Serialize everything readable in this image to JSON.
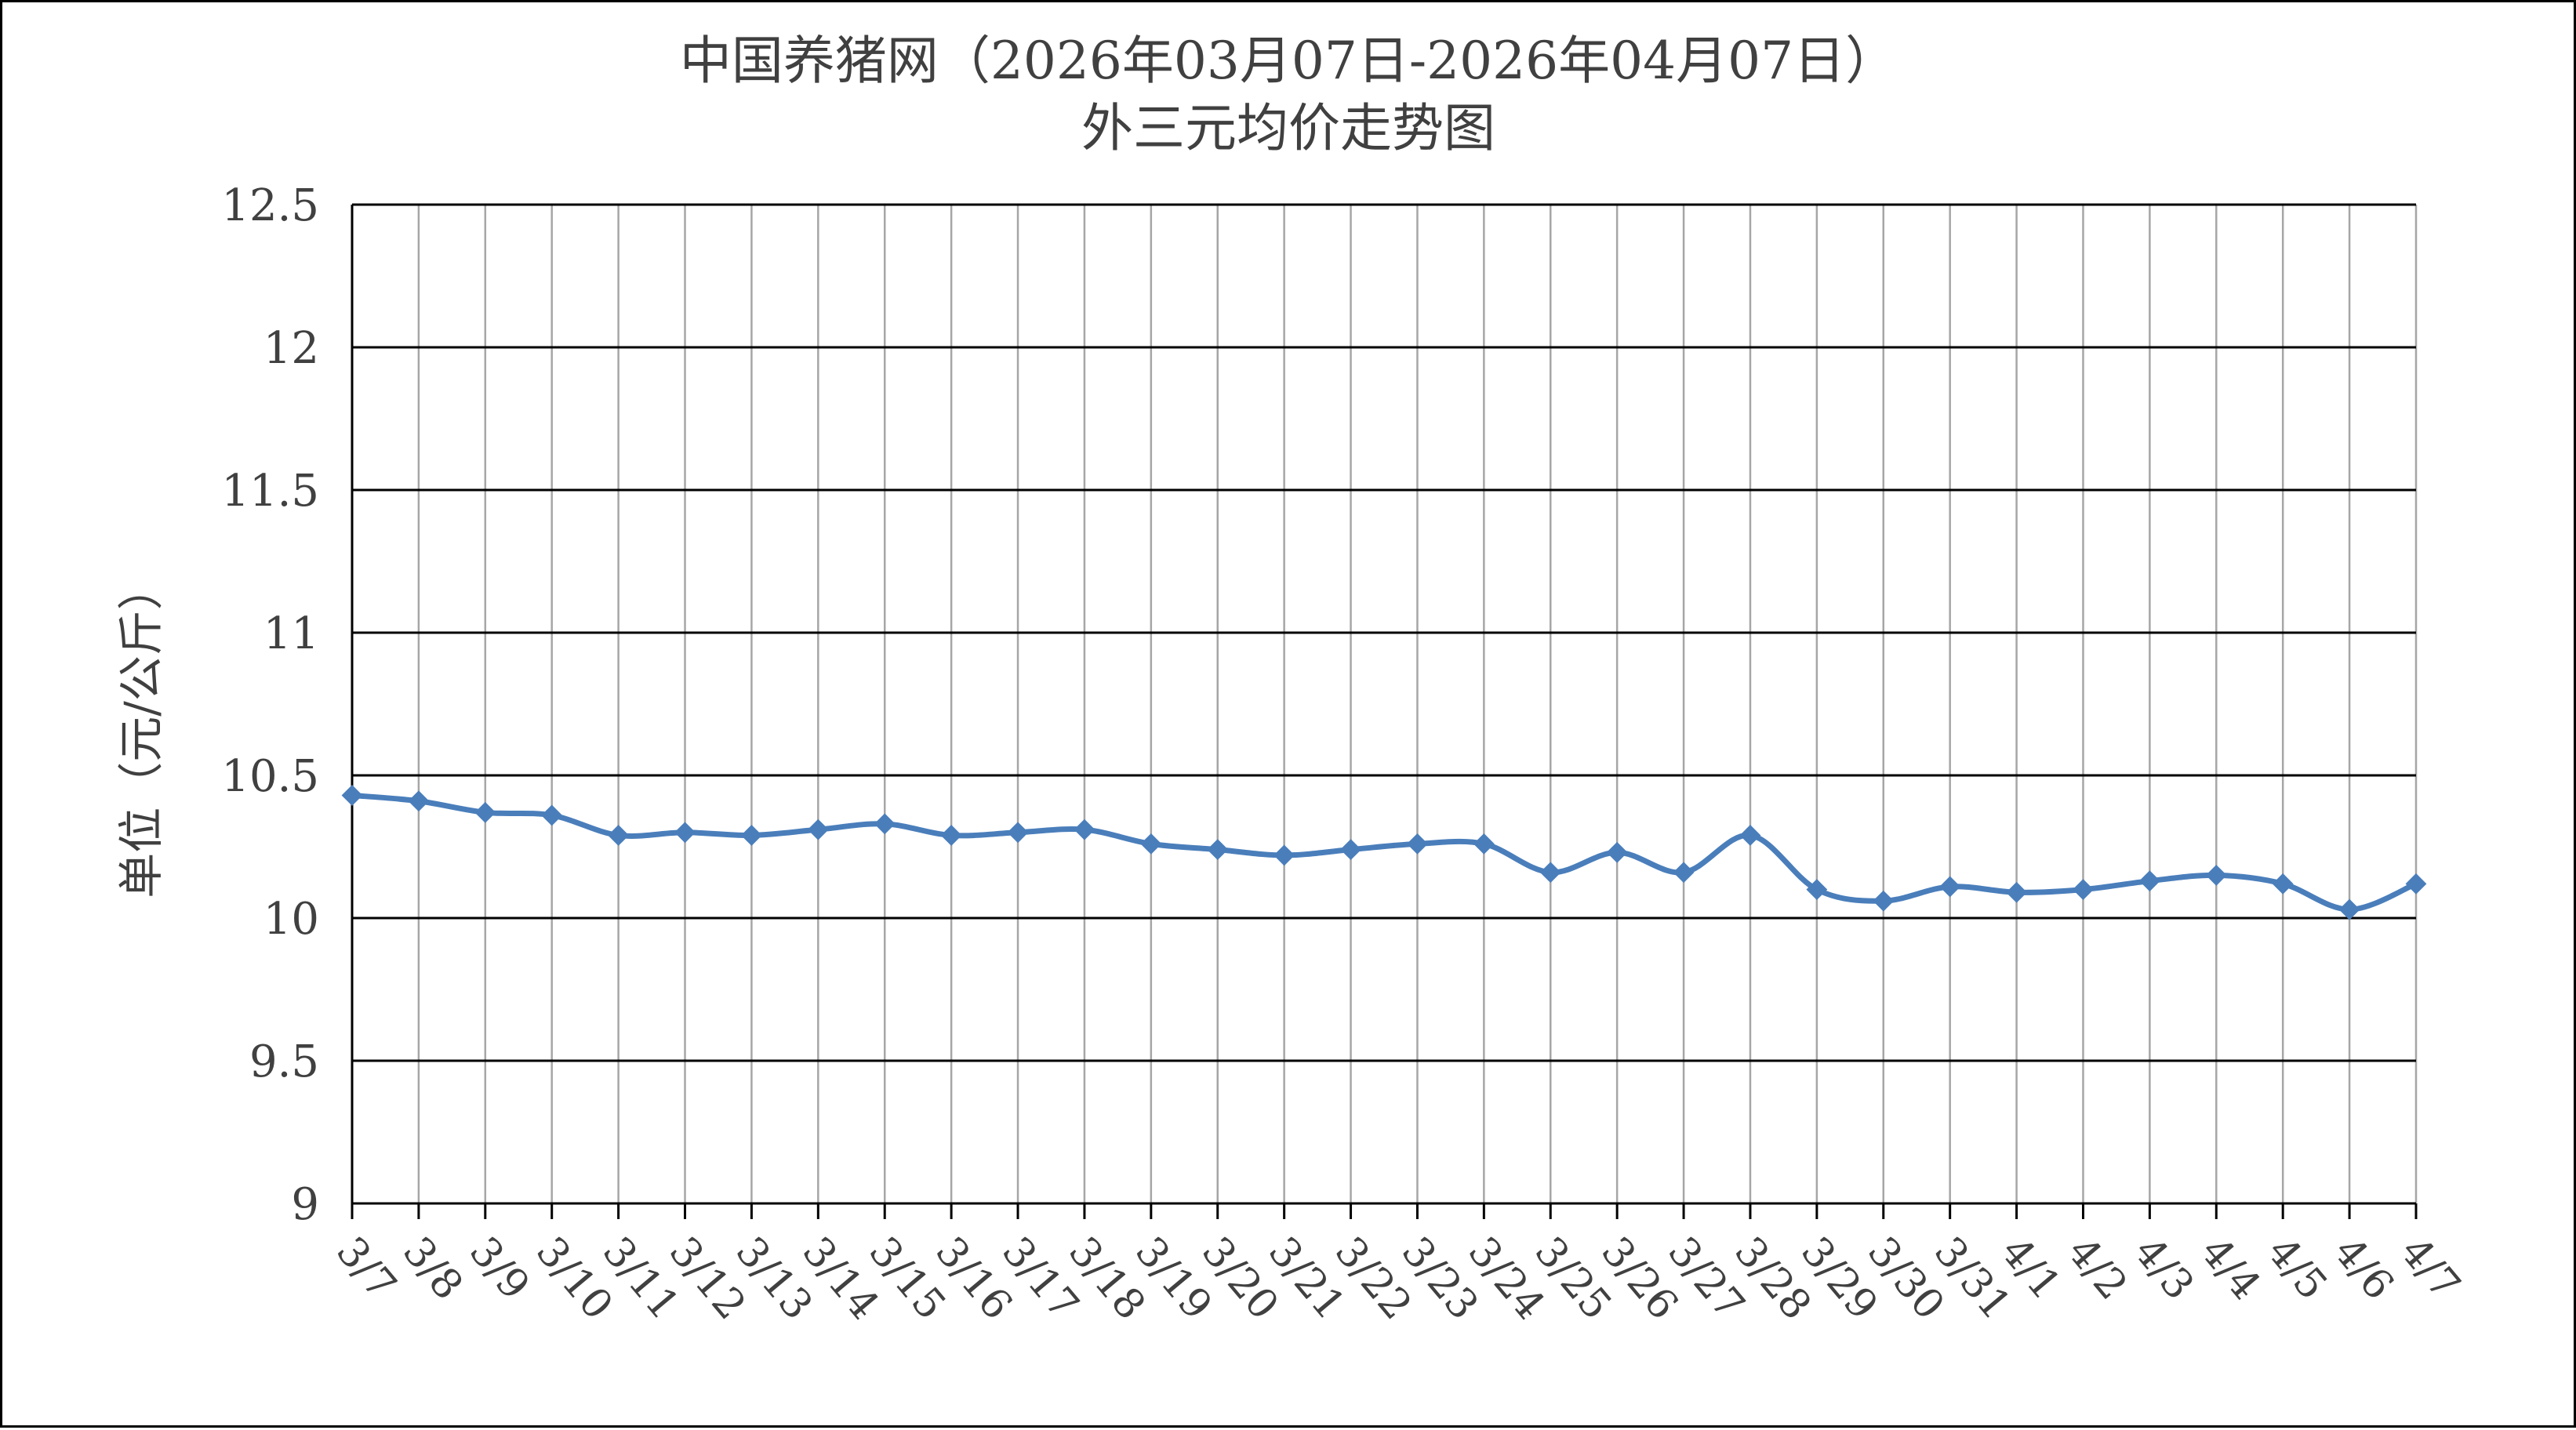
{
  "chart_data": {
    "type": "line",
    "title": "中国养猪网（2026年03月07日-2026年04月07日）",
    "subtitle": "外三元均价走势图",
    "ylabel": "单位（元/公斤）",
    "xlabel": "",
    "ylim": [
      9,
      12.5
    ],
    "yticks": [
      "9",
      "9.5",
      "10",
      "10.5",
      "11",
      "11.5",
      "12",
      "12.5"
    ],
    "grid": true,
    "legend": "none",
    "categories": [
      "3/7",
      "3/8",
      "3/9",
      "3/10",
      "3/11",
      "3/12",
      "3/13",
      "3/14",
      "3/15",
      "3/16",
      "3/17",
      "3/18",
      "3/19",
      "3/20",
      "3/21",
      "3/22",
      "3/23",
      "3/24",
      "3/25",
      "3/26",
      "3/27",
      "3/28",
      "3/29",
      "3/30",
      "3/31",
      "4/1",
      "4/2",
      "4/3",
      "4/4",
      "4/5",
      "4/6",
      "4/7"
    ],
    "series": [
      {
        "values": [
          10.43,
          10.41,
          10.37,
          10.36,
          10.29,
          10.3,
          10.29,
          10.31,
          10.33,
          10.29,
          10.3,
          10.31,
          10.26,
          10.24,
          10.22,
          10.24,
          10.26,
          10.26,
          10.16,
          10.23,
          10.16,
          10.29,
          10.1,
          10.06,
          10.11,
          10.09,
          10.1,
          10.13,
          10.15,
          10.12,
          10.03,
          10.12
        ],
        "color": "#4a7ebb"
      }
    ],
    "colors": {
      "line": "#4a7ebb",
      "grid_major": "#000000",
      "grid_minor": "#a6a6a6",
      "text": "#404040"
    }
  }
}
